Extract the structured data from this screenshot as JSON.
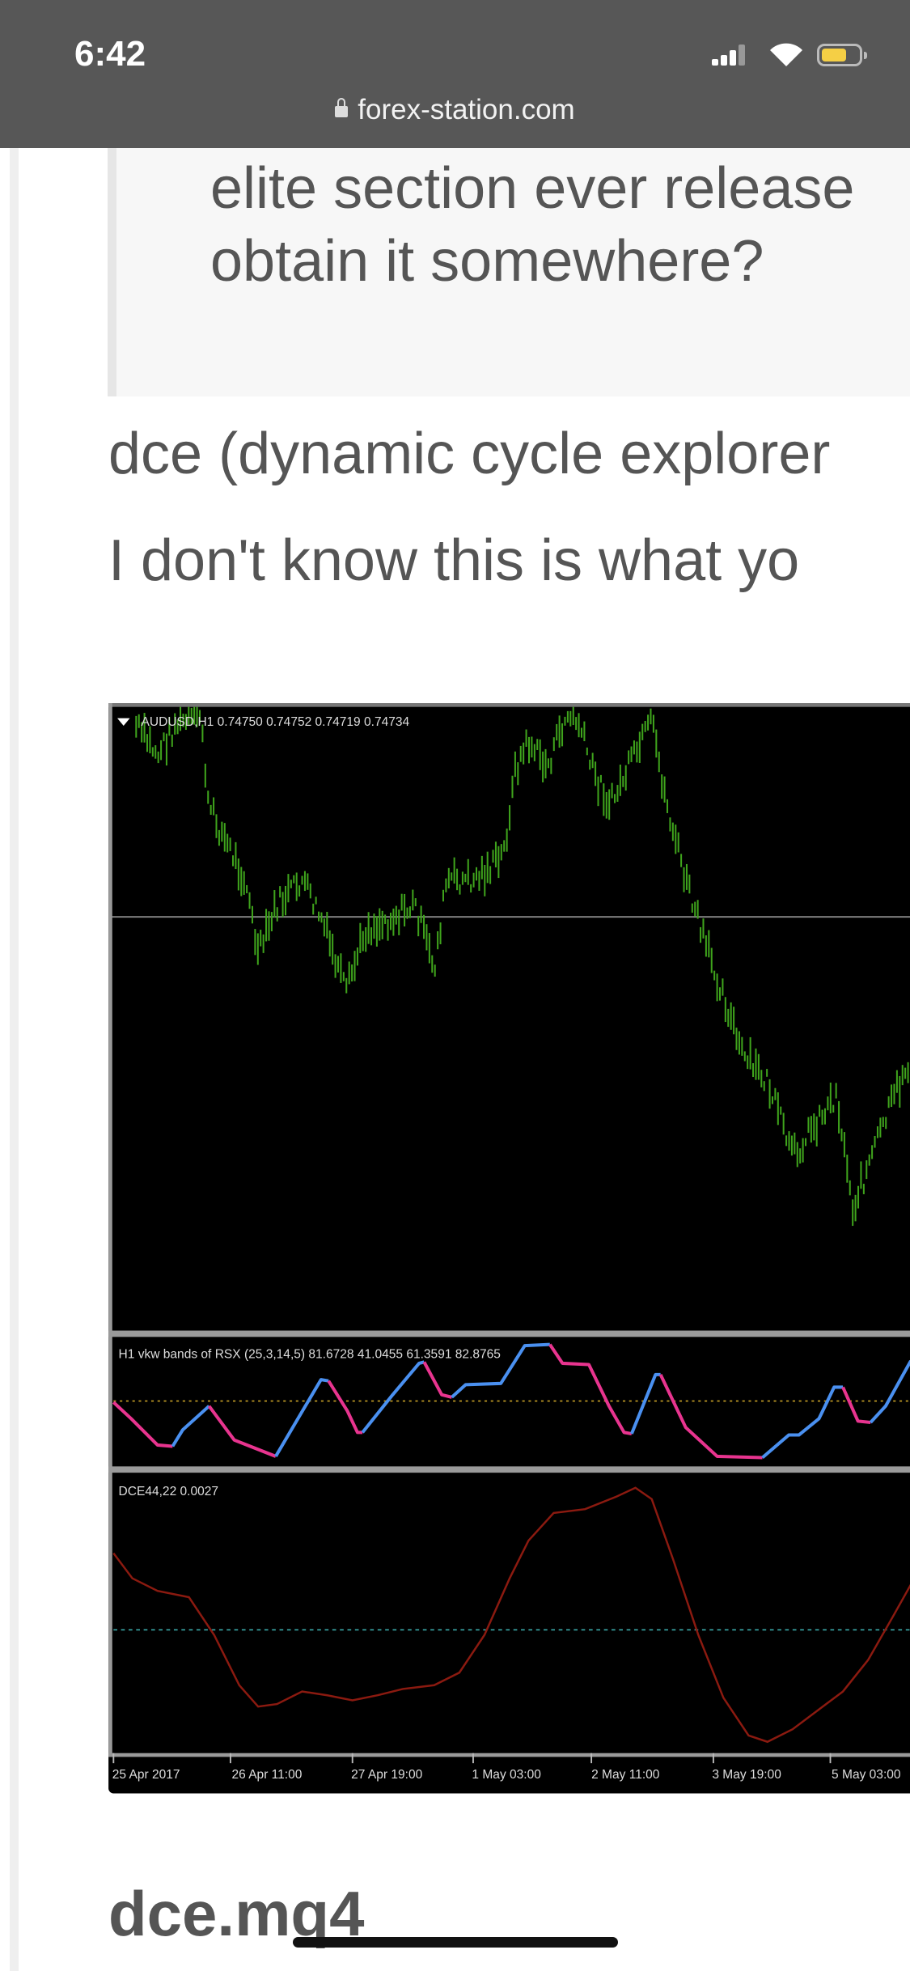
{
  "status_bar": {
    "time": "6:42",
    "url": "forex-station.com",
    "battery_color": "#f5cf45"
  },
  "quote": {
    "lines": [
      "elite section ever release",
      "obtain it somewhere?"
    ]
  },
  "post": {
    "lines": [
      "dce (dynamic cycle explorer",
      "I don't know this is what yo"
    ],
    "attachment_title": "dce.mq4"
  },
  "chart_image": {
    "main_label": "AUDUSD,H1  0.74750 0.74752 0.74719 0.74734",
    "rsx_label": "H1 vkw bands of RSX (25,3,14,5) 81.6728 41.0455 61.3591 82.8765",
    "dce_label": "DCE44,22 0.0027",
    "time_axis": [
      "25 Apr 2017",
      "26 Apr 11:00",
      "27 Apr 19:00",
      "1 May 03:00",
      "2 May 11:00",
      "3 May 19:00",
      "5 May 03:00"
    ],
    "colors": {
      "price": "#3fa41c",
      "rsx_up": "#4a90f0",
      "rsx_down": "#e8348f",
      "dce": "#8b1a10",
      "rsx_level": "#c9a227",
      "dce_level": "#3fb8b8"
    }
  }
}
